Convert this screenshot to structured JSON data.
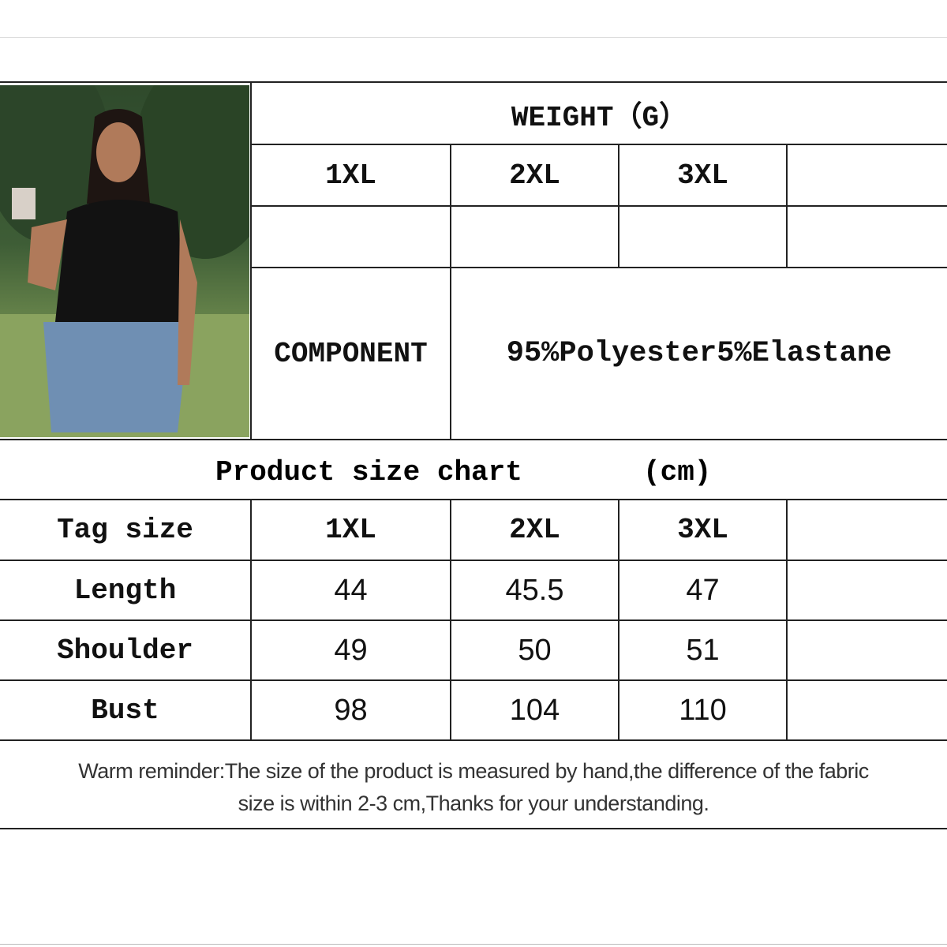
{
  "weight": {
    "title": "WEIGHT（G）",
    "sizes": [
      "1XL",
      "2XL",
      "3XL",
      ""
    ],
    "values": [
      "",
      "",
      "",
      ""
    ]
  },
  "component": {
    "label": "COMPONENT",
    "value": "95%Polyester5%Elastane"
  },
  "size_chart": {
    "title": "Product size chart",
    "unit": "(cm)",
    "header": [
      "Tag size",
      "1XL",
      "2XL",
      "3XL",
      ""
    ],
    "rows": [
      {
        "label": "Length",
        "values": [
          "44",
          "45.5",
          "47",
          ""
        ]
      },
      {
        "label": "Shoulder",
        "values": [
          "49",
          "50",
          "51",
          ""
        ]
      },
      {
        "label": "Bust",
        "values": [
          "98",
          "104",
          "110",
          ""
        ]
      }
    ]
  },
  "reminder": {
    "line1": "Warm reminder:The size of the product is measured by hand,the difference of the fabric",
    "line2": "size is within 2-3 cm,Thanks for your understanding."
  }
}
